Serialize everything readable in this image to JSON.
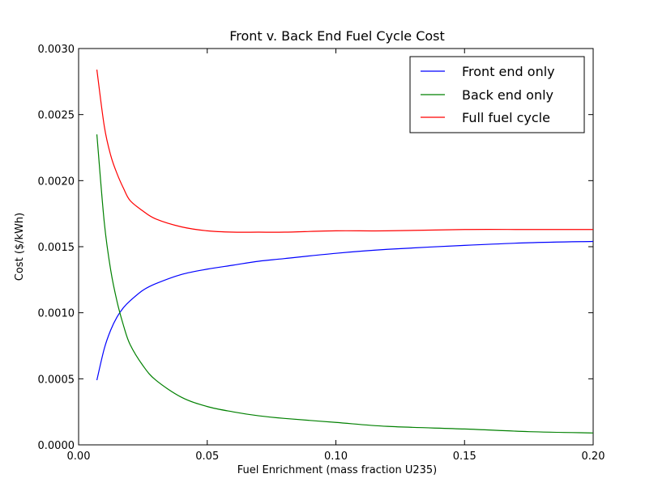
{
  "chart_data": {
    "type": "line",
    "title": "Front v. Back End Fuel Cycle Cost",
    "xlabel": "Fuel Enrichment (mass fraction U235)",
    "ylabel": "Cost ($/kWh)",
    "xlim": [
      0.0,
      0.2
    ],
    "ylim": [
      0.0,
      0.003
    ],
    "xticks": [
      "0.00",
      "0.05",
      "0.10",
      "0.15",
      "0.20"
    ],
    "yticks": [
      "0.0000",
      "0.0005",
      "0.0010",
      "0.0015",
      "0.0020",
      "0.0025",
      "0.0030"
    ],
    "grid": false,
    "legend_position": "top-right",
    "x": [
      0.0071,
      0.01,
      0.0125,
      0.015,
      0.0175,
      0.02,
      0.025,
      0.03,
      0.04,
      0.05,
      0.06,
      0.07,
      0.08,
      0.1,
      0.12,
      0.15,
      0.175,
      0.2
    ],
    "series": [
      {
        "name": "Front end only",
        "color": "#0000ff",
        "values": [
          0.00049,
          0.00073,
          0.00087,
          0.00097,
          0.00104,
          0.00109,
          0.00117,
          0.00122,
          0.00129,
          0.00133,
          0.00136,
          0.00139,
          0.00141,
          0.00145,
          0.00148,
          0.00151,
          0.00153,
          0.00154
        ]
      },
      {
        "name": "Back end only",
        "color": "#008000",
        "values": [
          0.00235,
          0.00168,
          0.00132,
          0.00108,
          0.0009,
          0.00076,
          0.0006,
          0.00049,
          0.00036,
          0.00029,
          0.00025,
          0.00022,
          0.0002,
          0.00017,
          0.00014,
          0.00012,
          0.0001,
          9e-05
        ]
      },
      {
        "name": "Full fuel cycle",
        "color": "#ff0000",
        "values": [
          0.00284,
          0.00241,
          0.00219,
          0.00205,
          0.00194,
          0.00185,
          0.00177,
          0.00171,
          0.00165,
          0.00162,
          0.00161,
          0.00161,
          0.00161,
          0.00162,
          0.00162,
          0.00163,
          0.00163,
          0.00163
        ]
      }
    ]
  }
}
